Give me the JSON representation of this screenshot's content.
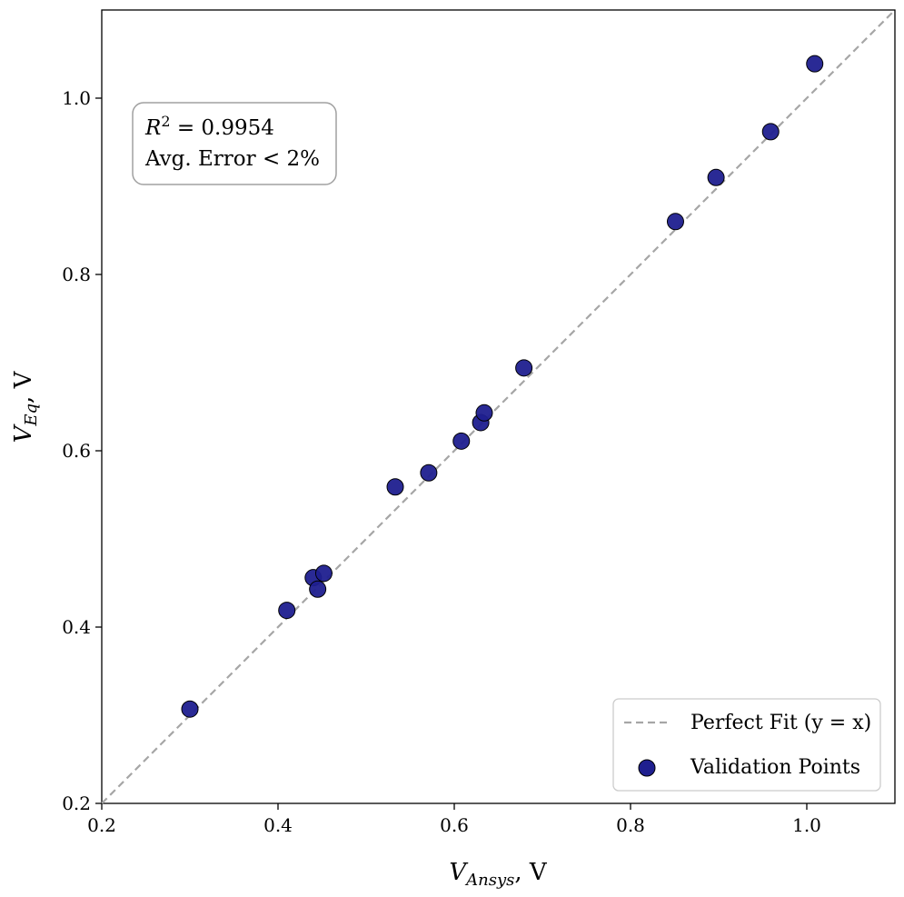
{
  "chart_data": {
    "type": "scatter",
    "xlabel": "V_Ansys, V",
    "ylabel": "V_Eq, V",
    "xlabel_main": "V",
    "xlabel_sub": "Ansys",
    "xlabel_unit": ", V",
    "ylabel_main": "V",
    "ylabel_sub": "Eq",
    "ylabel_unit": ", V",
    "xlim": [
      0.2,
      1.1
    ],
    "ylim": [
      0.2,
      1.1
    ],
    "xticks": [
      "0.2",
      "0.4",
      "0.6",
      "0.8",
      "1.0"
    ],
    "yticks": [
      "0.2",
      "0.4",
      "0.6",
      "0.8",
      "1.0"
    ],
    "grid": false,
    "legend_position": "bottom-right",
    "series": [
      {
        "name": "Validation Points",
        "color": "#1f1f8f",
        "x": [
          0.3,
          0.41,
          0.44,
          0.445,
          0.452,
          0.533,
          0.571,
          0.608,
          0.63,
          0.634,
          0.679,
          0.851,
          0.897,
          0.959,
          1.009
        ],
        "y": [
          0.307,
          0.419,
          0.456,
          0.443,
          0.461,
          0.559,
          0.575,
          0.611,
          0.632,
          0.643,
          0.694,
          0.86,
          0.91,
          0.962,
          1.039
        ]
      },
      {
        "name": "Perfect Fit (y = x)",
        "color": "#a6a6a6",
        "style": "dashed",
        "x": [
          0.2,
          1.1
        ],
        "y": [
          0.2,
          1.1
        ]
      }
    ],
    "legend": {
      "fit_label": "Perfect Fit (y = x)",
      "points_label": "Validation Points"
    },
    "annotation": {
      "r2_prefix": "R",
      "r2_sup": "2",
      "r2_value": " = 0.9954",
      "error_text": "Avg. Error < 2%"
    }
  }
}
